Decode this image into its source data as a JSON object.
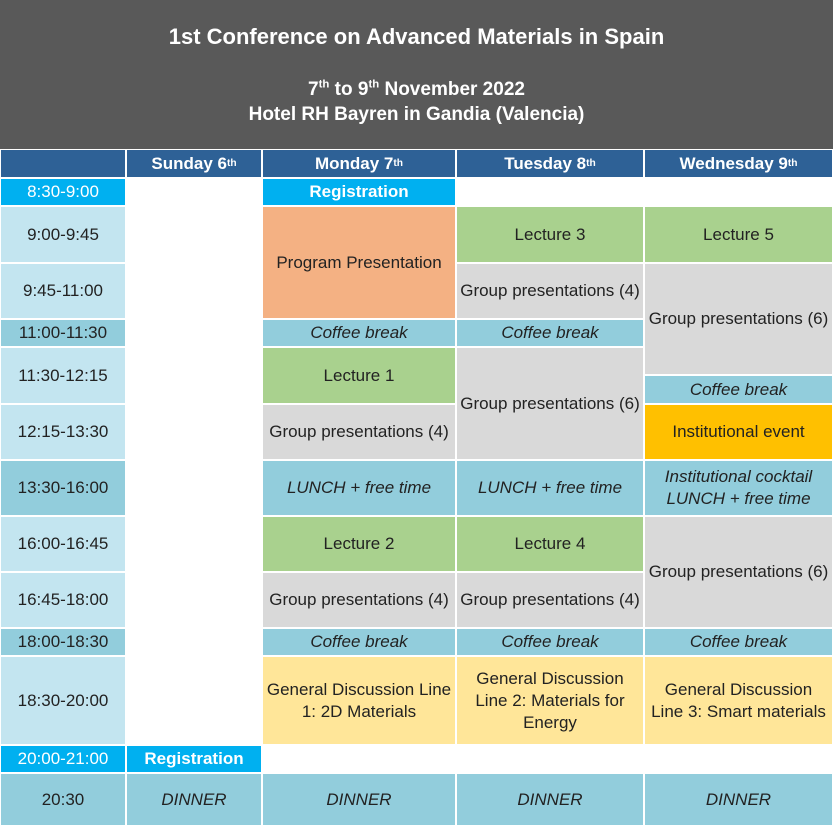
{
  "header": {
    "title": "1st Conference on Advanced Materials in Spain",
    "dates_start": "7",
    "dates_sup1": "th",
    "dates_mid": " to 9",
    "dates_sup2": "th",
    "dates_end": " November 2022",
    "venue": "Hotel RH Bayren in Gandia (Valencia)"
  },
  "days": [
    {
      "name": "Sunday 6",
      "sup": "th"
    },
    {
      "name": "Monday 7",
      "sup": "th"
    },
    {
      "name": "Tuesday 8",
      "sup": "th"
    },
    {
      "name": "Wednesday 9",
      "sup": "th"
    }
  ],
  "times": [
    "8:30-9:00",
    "9:00-9:45",
    "9:45-11:00",
    "11:00-11:30",
    "11:30-12:15",
    "12:15-13:30",
    "13:30-16:00",
    "16:00-16:45",
    "16:45-18:00",
    "18:00-18:30",
    "18:30-20:00",
    "20:00-21:00",
    "20:30"
  ],
  "sessions": {
    "registration": "Registration",
    "program_presentation": "Program Presentation",
    "lecture_1": "Lecture 1",
    "lecture_2": "Lecture 2",
    "lecture_3": "Lecture 3",
    "lecture_4": "Lecture 4",
    "lecture_5": "Lecture 5",
    "group_4": "Group presentations (4)",
    "group_6": "Group presentations (6)",
    "coffee": "Coffee break",
    "lunch": "LUNCH + free time",
    "institutional_event": "Institutional event",
    "institutional_cocktail": "Institutional cocktail LUNCH + free time",
    "gd_line1": "General Discussion Line 1: 2D Materials",
    "gd_line2": "General Discussion Line 2: Materials for Energy",
    "gd_line3": "General Discussion Line 3: Smart materials",
    "dinner": "DINNER"
  }
}
